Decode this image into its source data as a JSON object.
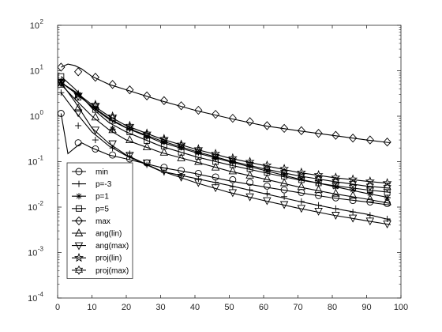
{
  "chart_data": {
    "type": "line",
    "xlim": [
      0,
      100
    ],
    "ylim": [
      0.0001,
      100
    ],
    "yscale": "log",
    "grid": false,
    "legend_position": "lower-left",
    "x_ticks": [
      {
        "value": 0,
        "label": "0"
      },
      {
        "value": 10,
        "label": "10"
      },
      {
        "value": 20,
        "label": "20"
      },
      {
        "value": 30,
        "label": "30"
      },
      {
        "value": 40,
        "label": "40"
      },
      {
        "value": 50,
        "label": "50"
      },
      {
        "value": 60,
        "label": "60"
      },
      {
        "value": 70,
        "label": "70"
      },
      {
        "value": 80,
        "label": "80"
      },
      {
        "value": 90,
        "label": "90"
      },
      {
        "value": 100,
        "label": "100"
      }
    ],
    "y_ticks": [
      {
        "value": 100,
        "base": "10",
        "exp": "2"
      },
      {
        "value": 10,
        "base": "10",
        "exp": "1"
      },
      {
        "value": 1,
        "base": "10",
        "exp": "0"
      },
      {
        "value": 0.1,
        "base": "10",
        "exp": "-1"
      },
      {
        "value": 0.01,
        "base": "10",
        "exp": "-2"
      },
      {
        "value": 0.001,
        "base": "10",
        "exp": "-3"
      },
      {
        "value": 0.0001,
        "base": "10",
        "exp": "-4"
      }
    ],
    "series": [
      {
        "name": "min",
        "marker": "circle",
        "x": [
          1,
          3,
          5,
          7,
          10,
          15,
          20,
          30,
          40,
          50,
          60,
          70,
          80,
          90,
          97
        ],
        "y": [
          1.15,
          0.15,
          0.2,
          0.26,
          0.2,
          0.14,
          0.115,
          0.075,
          0.055,
          0.038,
          0.028,
          0.021,
          0.016,
          0.013,
          0.011
        ],
        "markers": [
          [
            1,
            1.15
          ],
          [
            6,
            0.26
          ],
          [
            11,
            0.19
          ],
          [
            16,
            0.14
          ],
          [
            21,
            0.115
          ],
          [
            26,
            0.094
          ],
          [
            31,
            0.075
          ],
          [
            36,
            0.064
          ],
          [
            41,
            0.055
          ],
          [
            46,
            0.046
          ],
          [
            51,
            0.04
          ],
          [
            56,
            0.035
          ],
          [
            61,
            0.029
          ],
          [
            66,
            0.024
          ],
          [
            71,
            0.021
          ],
          [
            76,
            0.018
          ],
          [
            81,
            0.016
          ],
          [
            86,
            0.014
          ],
          [
            91,
            0.013
          ],
          [
            96,
            0.012
          ]
        ]
      },
      {
        "name": "p=-3",
        "marker": "plus",
        "x": [
          1,
          5,
          10,
          15,
          20,
          30,
          40,
          50,
          60,
          70,
          80,
          90,
          97
        ],
        "y": [
          3.3,
          1.3,
          0.45,
          0.22,
          0.135,
          0.062,
          0.043,
          0.03,
          0.02,
          0.0135,
          0.0095,
          0.007,
          0.0052
        ],
        "markers": [
          [
            1,
            3.3
          ],
          [
            6,
            0.62
          ],
          [
            11,
            0.3
          ],
          [
            16,
            0.2
          ],
          [
            21,
            0.15
          ],
          [
            26,
            0.085
          ],
          [
            31,
            0.058
          ],
          [
            36,
            0.048
          ],
          [
            41,
            0.042
          ],
          [
            46,
            0.035
          ],
          [
            51,
            0.028
          ],
          [
            56,
            0.024
          ],
          [
            61,
            0.02
          ],
          [
            66,
            0.017
          ],
          [
            71,
            0.0133
          ],
          [
            76,
            0.011
          ],
          [
            81,
            0.0093
          ],
          [
            86,
            0.0078
          ],
          [
            91,
            0.0066
          ],
          [
            96,
            0.0055
          ]
        ]
      },
      {
        "name": "p=1",
        "marker": "asterisk",
        "x": [
          1,
          5,
          10,
          15,
          20,
          30,
          40,
          50,
          60,
          70,
          80,
          90,
          97
        ],
        "y": [
          5.5,
          3.5,
          1.6,
          0.85,
          0.55,
          0.27,
          0.16,
          0.1,
          0.065,
          0.042,
          0.029,
          0.02,
          0.016
        ],
        "markers": [
          [
            1,
            5.5
          ],
          [
            6,
            3.0
          ],
          [
            11,
            1.55
          ],
          [
            16,
            0.52
          ],
          [
            21,
            0.55
          ],
          [
            26,
            0.36
          ],
          [
            31,
            0.27
          ],
          [
            36,
            0.21
          ],
          [
            41,
            0.16
          ],
          [
            46,
            0.12
          ],
          [
            51,
            0.1
          ],
          [
            56,
            0.081
          ],
          [
            61,
            0.063
          ],
          [
            66,
            0.052
          ],
          [
            71,
            0.042
          ],
          [
            76,
            0.035
          ],
          [
            81,
            0.028
          ],
          [
            86,
            0.024
          ],
          [
            91,
            0.02
          ],
          [
            96,
            0.016
          ]
        ]
      },
      {
        "name": "p=5",
        "marker": "square",
        "x": [
          1,
          5,
          10,
          15,
          20,
          30,
          40,
          50,
          60,
          70,
          80,
          90,
          97
        ],
        "y": [
          7.5,
          4.0,
          1.5,
          0.72,
          0.45,
          0.22,
          0.13,
          0.085,
          0.058,
          0.04,
          0.03,
          0.024,
          0.021
        ],
        "markers": [
          [
            1,
            7.5
          ],
          [
            6,
            2.6
          ],
          [
            11,
            1.4
          ],
          [
            16,
            0.8
          ],
          [
            21,
            0.45
          ],
          [
            26,
            0.29
          ],
          [
            31,
            0.22
          ],
          [
            36,
            0.16
          ],
          [
            41,
            0.13
          ],
          [
            46,
            0.1
          ],
          [
            51,
            0.085
          ],
          [
            56,
            0.07
          ],
          [
            61,
            0.058
          ],
          [
            66,
            0.048
          ],
          [
            71,
            0.04
          ],
          [
            76,
            0.034
          ],
          [
            81,
            0.03
          ],
          [
            86,
            0.027
          ],
          [
            91,
            0.024
          ],
          [
            96,
            0.021
          ]
        ]
      },
      {
        "name": "max",
        "marker": "diamond",
        "x": [
          1,
          3,
          5,
          7,
          10,
          15,
          20,
          30,
          40,
          50,
          60,
          70,
          80,
          90,
          97
        ],
        "y": [
          12,
          14,
          13,
          11,
          7.5,
          5.0,
          3.8,
          2.2,
          1.35,
          0.9,
          0.62,
          0.48,
          0.38,
          0.3,
          0.26
        ],
        "markers": [
          [
            1,
            12
          ],
          [
            6,
            9.5
          ],
          [
            11,
            7.2
          ],
          [
            16,
            5.0
          ],
          [
            21,
            3.8
          ],
          [
            26,
            2.8
          ],
          [
            31,
            2.2
          ],
          [
            36,
            1.7
          ],
          [
            41,
            1.35
          ],
          [
            46,
            1.1
          ],
          [
            51,
            0.9
          ],
          [
            56,
            0.76
          ],
          [
            61,
            0.62
          ],
          [
            66,
            0.54
          ],
          [
            71,
            0.48
          ],
          [
            76,
            0.42
          ],
          [
            81,
            0.38
          ],
          [
            86,
            0.33
          ],
          [
            91,
            0.3
          ],
          [
            96,
            0.27
          ]
        ]
      },
      {
        "name": "ang(lin)",
        "marker": "triangle-up",
        "x": [
          1,
          5,
          10,
          15,
          20,
          30,
          40,
          50,
          60,
          70,
          80,
          90,
          97
        ],
        "y": [
          5.0,
          2.4,
          1.0,
          0.5,
          0.3,
          0.16,
          0.1,
          0.062,
          0.042,
          0.028,
          0.02,
          0.015,
          0.012
        ],
        "markers": [
          [
            1,
            5.0
          ],
          [
            6,
            1.5
          ],
          [
            11,
            0.95
          ],
          [
            16,
            0.5
          ],
          [
            21,
            0.3
          ],
          [
            26,
            0.21
          ],
          [
            31,
            0.16
          ],
          [
            36,
            0.12
          ],
          [
            41,
            0.1
          ],
          [
            46,
            0.075
          ],
          [
            51,
            0.062
          ],
          [
            56,
            0.05
          ],
          [
            61,
            0.042
          ],
          [
            66,
            0.034
          ],
          [
            71,
            0.028
          ],
          [
            76,
            0.024
          ],
          [
            81,
            0.02
          ],
          [
            86,
            0.018
          ],
          [
            91,
            0.015
          ],
          [
            96,
            0.013
          ]
        ]
      },
      {
        "name": "ang(max)",
        "marker": "triangle-down",
        "x": [
          1,
          5,
          10,
          15,
          20,
          30,
          40,
          50,
          60,
          70,
          80,
          90,
          97
        ],
        "y": [
          5.5,
          2.1,
          0.55,
          0.25,
          0.14,
          0.063,
          0.035,
          0.021,
          0.014,
          0.0095,
          0.0067,
          0.005,
          0.0041
        ],
        "markers": [
          [
            1,
            5.5
          ],
          [
            6,
            1.2
          ],
          [
            11,
            0.5
          ],
          [
            16,
            0.25
          ],
          [
            21,
            0.14
          ],
          [
            26,
            0.095
          ],
          [
            31,
            0.063
          ],
          [
            36,
            0.046
          ],
          [
            41,
            0.035
          ],
          [
            46,
            0.027
          ],
          [
            51,
            0.021
          ],
          [
            56,
            0.017
          ],
          [
            61,
            0.014
          ],
          [
            66,
            0.0115
          ],
          [
            71,
            0.0095
          ],
          [
            76,
            0.0082
          ],
          [
            81,
            0.0067
          ],
          [
            86,
            0.0058
          ],
          [
            91,
            0.005
          ],
          [
            96,
            0.0043
          ]
        ]
      },
      {
        "name": "proj(lin)",
        "marker": "pentagram",
        "x": [
          1,
          5,
          10,
          15,
          20,
          30,
          40,
          50,
          60,
          70,
          80,
          90,
          97
        ],
        "y": [
          5.5,
          3.5,
          1.8,
          1.0,
          0.62,
          0.32,
          0.19,
          0.12,
          0.083,
          0.058,
          0.045,
          0.037,
          0.033
        ],
        "markers": [
          [
            1,
            5.5
          ],
          [
            6,
            3.0
          ],
          [
            11,
            1.8
          ],
          [
            16,
            1.0
          ],
          [
            21,
            0.62
          ],
          [
            26,
            0.42
          ],
          [
            31,
            0.32
          ],
          [
            36,
            0.24
          ],
          [
            41,
            0.19
          ],
          [
            46,
            0.15
          ],
          [
            51,
            0.12
          ],
          [
            56,
            0.1
          ],
          [
            61,
            0.083
          ],
          [
            66,
            0.07
          ],
          [
            71,
            0.058
          ],
          [
            76,
            0.051
          ],
          [
            81,
            0.045
          ],
          [
            86,
            0.041
          ],
          [
            91,
            0.037
          ],
          [
            96,
            0.034
          ]
        ]
      },
      {
        "name": "proj(max)",
        "marker": "hexagram",
        "x": [
          1,
          5,
          10,
          15,
          20,
          30,
          40,
          50,
          60,
          70,
          80,
          90,
          97
        ],
        "y": [
          5.5,
          3.3,
          1.65,
          0.9,
          0.56,
          0.29,
          0.17,
          0.105,
          0.07,
          0.049,
          0.037,
          0.029,
          0.026
        ],
        "markers": [
          [
            1,
            5.5
          ],
          [
            6,
            2.8
          ],
          [
            11,
            1.65
          ],
          [
            16,
            0.9
          ],
          [
            21,
            0.56
          ],
          [
            26,
            0.38
          ],
          [
            31,
            0.29
          ],
          [
            36,
            0.22
          ],
          [
            41,
            0.17
          ],
          [
            46,
            0.13
          ],
          [
            51,
            0.105
          ],
          [
            56,
            0.087
          ],
          [
            61,
            0.07
          ],
          [
            66,
            0.058
          ],
          [
            71,
            0.049
          ],
          [
            76,
            0.042
          ],
          [
            81,
            0.037
          ],
          [
            86,
            0.033
          ],
          [
            91,
            0.029
          ],
          [
            96,
            0.027
          ]
        ]
      }
    ]
  }
}
